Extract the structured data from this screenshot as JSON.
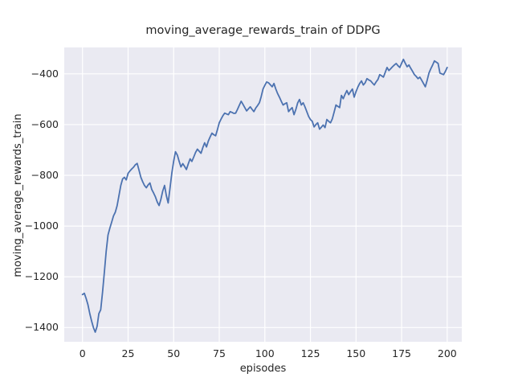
{
  "figure": {
    "background_color": "#ffffff",
    "axes_background_color": "#eaeaf2",
    "grid_color": "#ffffff",
    "text_color": "#262626"
  },
  "chart_data": {
    "type": "line",
    "title": "moving_average_rewards_train of DDPG",
    "xlabel": "episodes",
    "ylabel": "moving_average_rewards_train",
    "legend": false,
    "grid": true,
    "line_color": "#4c72b0",
    "xlim": [
      -10,
      208
    ],
    "ylim": [
      -1456,
      -296
    ],
    "xticks": [
      0,
      25,
      50,
      75,
      100,
      125,
      150,
      175,
      200
    ],
    "xticklabels": [
      "0",
      "25",
      "50",
      "75",
      "100",
      "125",
      "150",
      "175",
      "200"
    ],
    "yticks": [
      -400,
      -600,
      -800,
      -1000,
      -1200,
      -1400
    ],
    "yticklabels": [
      "−400",
      "−600",
      "−800",
      "−1000",
      "−1200",
      "−1400"
    ],
    "x": [
      0,
      1,
      2,
      3,
      4,
      5,
      6,
      7,
      8,
      9,
      10,
      11,
      12,
      13,
      14,
      15,
      16,
      17,
      18,
      19,
      20,
      21,
      22,
      23,
      24,
      25,
      26,
      27,
      28,
      29,
      30,
      31,
      32,
      33,
      34,
      35,
      36,
      37,
      38,
      39,
      40,
      41,
      42,
      43,
      44,
      45,
      46,
      47,
      48,
      49,
      50,
      51,
      52,
      53,
      54,
      55,
      56,
      57,
      58,
      59,
      60,
      61,
      62,
      63,
      64,
      65,
      66,
      67,
      68,
      69,
      70,
      71,
      72,
      73,
      74,
      75,
      76,
      77,
      78,
      79,
      80,
      81,
      82,
      83,
      84,
      85,
      86,
      87,
      88,
      89,
      90,
      91,
      92,
      93,
      94,
      95,
      96,
      97,
      98,
      99,
      100,
      101,
      102,
      103,
      104,
      105,
      106,
      107,
      108,
      109,
      110,
      111,
      112,
      113,
      114,
      115,
      116,
      117,
      118,
      119,
      120,
      121,
      122,
      123,
      124,
      125,
      126,
      127,
      128,
      129,
      130,
      131,
      132,
      133,
      134,
      135,
      136,
      137,
      138,
      139,
      140,
      141,
      142,
      143,
      144,
      145,
      146,
      147,
      148,
      149,
      150,
      151,
      152,
      153,
      154,
      155,
      156,
      157,
      158,
      159,
      160,
      161,
      162,
      163,
      164,
      165,
      166,
      167,
      168,
      169,
      170,
      171,
      172,
      173,
      174,
      175,
      176,
      177,
      178,
      179,
      180,
      181,
      182,
      183,
      184,
      185,
      186,
      187,
      188,
      189,
      190,
      191,
      192,
      193,
      194,
      195,
      196,
      197,
      198,
      199,
      200
    ],
    "values": [
      -1270,
      -1265,
      -1285,
      -1310,
      -1345,
      -1375,
      -1400,
      -1418,
      -1395,
      -1345,
      -1330,
      -1260,
      -1180,
      -1100,
      -1035,
      -1008,
      -985,
      -960,
      -945,
      -920,
      -880,
      -840,
      -814,
      -808,
      -818,
      -792,
      -783,
      -775,
      -768,
      -758,
      -753,
      -780,
      -808,
      -825,
      -840,
      -849,
      -838,
      -830,
      -856,
      -870,
      -885,
      -905,
      -919,
      -895,
      -862,
      -840,
      -881,
      -909,
      -850,
      -790,
      -745,
      -707,
      -720,
      -745,
      -767,
      -754,
      -765,
      -777,
      -755,
      -735,
      -745,
      -728,
      -710,
      -697,
      -705,
      -713,
      -690,
      -672,
      -688,
      -665,
      -648,
      -634,
      -640,
      -644,
      -620,
      -593,
      -578,
      -565,
      -555,
      -558,
      -561,
      -549,
      -552,
      -556,
      -555,
      -540,
      -524,
      -508,
      -520,
      -533,
      -546,
      -538,
      -530,
      -540,
      -549,
      -535,
      -525,
      -514,
      -490,
      -460,
      -445,
      -432,
      -435,
      -443,
      -451,
      -438,
      -460,
      -478,
      -492,
      -508,
      -523,
      -518,
      -514,
      -549,
      -540,
      -533,
      -561,
      -540,
      -515,
      -501,
      -523,
      -514,
      -530,
      -549,
      -568,
      -580,
      -587,
      -609,
      -600,
      -593,
      -618,
      -610,
      -602,
      -612,
      -580,
      -587,
      -593,
      -577,
      -550,
      -523,
      -528,
      -533,
      -485,
      -498,
      -480,
      -466,
      -482,
      -470,
      -460,
      -492,
      -470,
      -452,
      -438,
      -428,
      -444,
      -435,
      -419,
      -424,
      -428,
      -436,
      -444,
      -432,
      -422,
      -403,
      -408,
      -413,
      -395,
      -375,
      -387,
      -380,
      -372,
      -365,
      -359,
      -368,
      -375,
      -358,
      -343,
      -358,
      -372,
      -365,
      -378,
      -390,
      -403,
      -410,
      -419,
      -413,
      -425,
      -438,
      -451,
      -425,
      -397,
      -380,
      -365,
      -349,
      -354,
      -359,
      -397,
      -400,
      -403,
      -390,
      -375
    ]
  }
}
